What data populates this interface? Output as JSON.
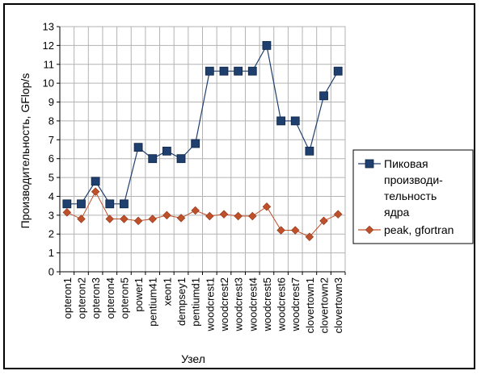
{
  "chart_data": {
    "type": "line",
    "title": "",
    "xlabel": "Узел",
    "ylabel": "Производительность, GFlop/s",
    "ylim": [
      0,
      13
    ],
    "y_ticks": [
      0,
      1,
      2,
      3,
      4,
      5,
      6,
      7,
      8,
      9,
      10,
      11,
      12,
      13
    ],
    "grid": true,
    "legend_position": "right",
    "categories": [
      "opteron1",
      "opteron2",
      "opteron3",
      "opteron4",
      "opteron5",
      "power1",
      "pentium41",
      "xeon1",
      "dempsey1",
      "pentiumd1",
      "woodcrest1",
      "woodcrest2",
      "woodcrest3",
      "woodcrest4",
      "woodcrest5",
      "woodcrest6",
      "woodcrest7",
      "clovertown1",
      "clovertown2",
      "clovertown3"
    ],
    "series": [
      {
        "name": "Пиковая производительность ядра",
        "legend_lines": [
          "Пиковая",
          "производи-",
          "тельность",
          "ядра"
        ],
        "color": "#1f3f6e",
        "marker": "square",
        "values": [
          3.6,
          3.6,
          4.8,
          3.6,
          3.6,
          6.6,
          6.0,
          6.4,
          6.0,
          6.8,
          10.64,
          10.64,
          10.64,
          10.64,
          12.0,
          8.0,
          8.0,
          6.4,
          9.33,
          10.64
        ]
      },
      {
        "name": "peak, gfortran",
        "legend_lines": [
          "peak, gfortran"
        ],
        "color": "#c0502a",
        "marker": "diamond",
        "values": [
          3.15,
          2.8,
          4.25,
          2.8,
          2.8,
          2.7,
          2.8,
          3.0,
          2.85,
          3.25,
          2.95,
          3.05,
          2.95,
          2.95,
          3.45,
          2.2,
          2.2,
          1.85,
          2.7,
          3.05
        ]
      }
    ]
  }
}
